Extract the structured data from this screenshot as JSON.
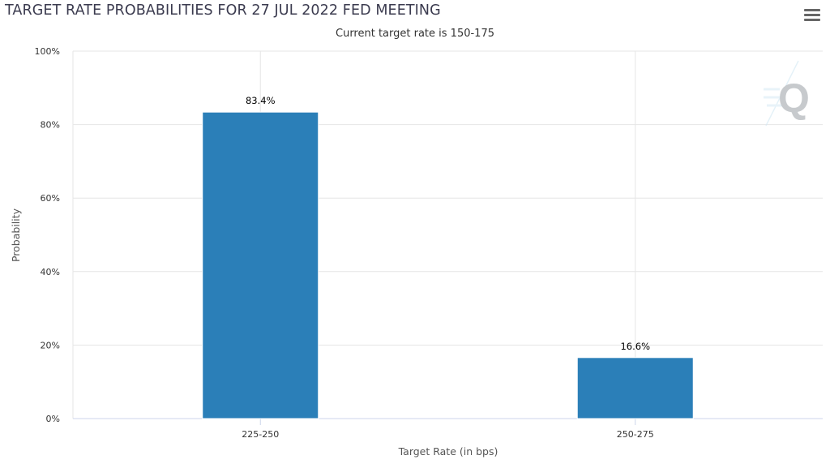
{
  "menu": {
    "icon": "hamburger-menu-icon"
  },
  "watermark": {
    "icon": "q-logo-watermark",
    "letter": "Q"
  },
  "chart_data": {
    "type": "bar",
    "title": "TARGET RATE PROBABILITIES FOR 27 JUL 2022 FED MEETING",
    "subtitle": "Current target rate is 150-175",
    "xlabel": "Target Rate (in bps)",
    "ylabel": "Probability",
    "categories": [
      "225-250",
      "250-275"
    ],
    "values": [
      83.4,
      16.6
    ],
    "value_labels": [
      "83.4%",
      "16.6%"
    ],
    "ylim": [
      0,
      100
    ],
    "yticks": [
      0,
      20,
      40,
      60,
      80,
      100
    ],
    "ytick_labels": [
      "0%",
      "20%",
      "40%",
      "60%",
      "80%",
      "100%"
    ],
    "grid": true,
    "bar_color": "#2b7fb8"
  }
}
